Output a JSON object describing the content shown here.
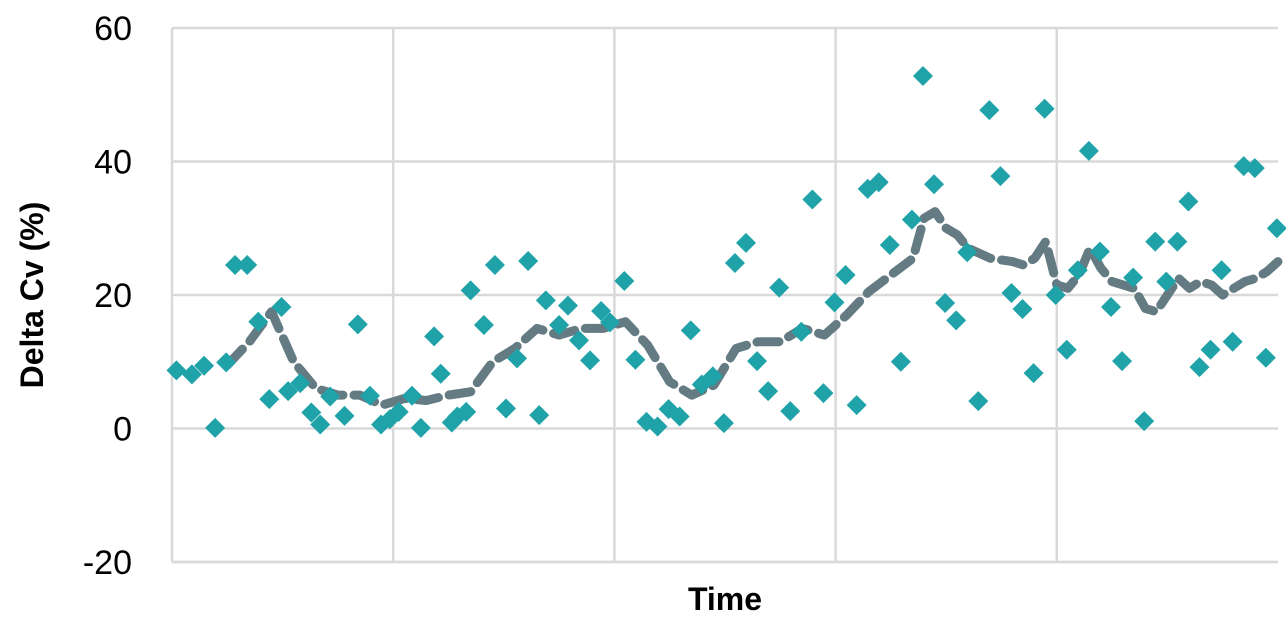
{
  "chart_data": {
    "type": "scatter",
    "title": "",
    "xlabel": "Time",
    "ylabel": "Delta Cv (%)",
    "ylim": [
      -20,
      60
    ],
    "xlim": [
      0,
      100
    ],
    "yticks": [
      -20,
      0,
      20,
      40,
      60
    ],
    "ytick_labels": [
      "-20",
      "0",
      "20",
      "40",
      "60"
    ],
    "x_gridlines": [
      20,
      40,
      60,
      80
    ],
    "grid": true,
    "legend": "none",
    "series": [
      {
        "marker": "diamond",
        "color": "#1fa3a8",
        "points": [
          [
            0.4,
            8.7
          ],
          [
            1.8,
            8.1
          ],
          [
            2.9,
            9.4
          ],
          [
            3.9,
            0.1
          ],
          [
            4.9,
            9.9
          ],
          [
            5.7,
            24.5
          ],
          [
            6.8,
            24.5
          ],
          [
            7.8,
            16.0
          ],
          [
            8.8,
            4.4
          ],
          [
            9.9,
            18.2
          ],
          [
            10.5,
            5.6
          ],
          [
            11.6,
            6.8
          ],
          [
            12.6,
            2.4
          ],
          [
            13.4,
            0.6
          ],
          [
            14.3,
            4.8
          ],
          [
            15.6,
            1.9
          ],
          [
            16.8,
            15.6
          ],
          [
            17.9,
            4.9
          ],
          [
            18.9,
            0.6
          ],
          [
            19.7,
            1.4
          ],
          [
            20.5,
            2.5
          ],
          [
            21.7,
            4.9
          ],
          [
            22.5,
            0.1
          ],
          [
            23.7,
            13.8
          ],
          [
            24.3,
            8.2
          ],
          [
            25.3,
            0.9
          ],
          [
            25.8,
            1.8
          ],
          [
            26.6,
            2.5
          ],
          [
            27.0,
            20.7
          ],
          [
            28.2,
            15.5
          ],
          [
            29.2,
            24.5
          ],
          [
            30.2,
            3.0
          ],
          [
            31.2,
            10.5
          ],
          [
            32.2,
            25.1
          ],
          [
            33.2,
            2.0
          ],
          [
            33.8,
            19.2
          ],
          [
            35.0,
            15.5
          ],
          [
            35.8,
            18.4
          ],
          [
            36.8,
            13.2
          ],
          [
            37.8,
            10.2
          ],
          [
            38.8,
            17.6
          ],
          [
            39.6,
            15.9
          ],
          [
            40.9,
            22.1
          ],
          [
            41.9,
            10.3
          ],
          [
            42.9,
            1.0
          ],
          [
            43.9,
            0.3
          ],
          [
            44.9,
            2.9
          ],
          [
            45.9,
            1.8
          ],
          [
            46.9,
            14.7
          ],
          [
            47.9,
            6.6
          ],
          [
            48.9,
            7.8
          ],
          [
            49.9,
            0.8
          ],
          [
            50.9,
            24.8
          ],
          [
            51.9,
            27.8
          ],
          [
            52.9,
            10.1
          ],
          [
            53.9,
            5.6
          ],
          [
            54.9,
            21.1
          ],
          [
            55.9,
            2.6
          ],
          [
            56.9,
            14.5
          ],
          [
            57.9,
            34.3
          ],
          [
            58.9,
            5.3
          ],
          [
            59.9,
            18.9
          ],
          [
            60.9,
            23.0
          ],
          [
            61.9,
            3.5
          ],
          [
            62.9,
            35.9
          ],
          [
            63.9,
            36.9
          ],
          [
            64.9,
            27.5
          ],
          [
            65.9,
            10.0
          ],
          [
            66.9,
            31.3
          ],
          [
            67.9,
            52.8
          ],
          [
            68.9,
            36.6
          ],
          [
            69.9,
            18.8
          ],
          [
            70.9,
            16.2
          ],
          [
            71.9,
            26.4
          ],
          [
            72.9,
            4.1
          ],
          [
            73.9,
            47.7
          ],
          [
            74.9,
            37.8
          ],
          [
            75.9,
            20.3
          ],
          [
            76.9,
            17.9
          ],
          [
            77.9,
            8.3
          ],
          [
            78.9,
            47.9
          ],
          [
            79.9,
            20.0
          ],
          [
            80.9,
            11.8
          ],
          [
            81.9,
            23.7
          ],
          [
            82.9,
            41.6
          ],
          [
            83.9,
            26.5
          ],
          [
            84.9,
            18.2
          ],
          [
            85.9,
            10.1
          ],
          [
            86.9,
            22.6
          ],
          [
            87.9,
            1.1
          ],
          [
            88.9,
            28.0
          ],
          [
            89.9,
            22.0
          ],
          [
            90.9,
            28.0
          ],
          [
            91.9,
            34.0
          ],
          [
            92.9,
            9.2
          ],
          [
            93.9,
            11.8
          ],
          [
            94.9,
            23.7
          ],
          [
            95.9,
            13.0
          ],
          [
            96.9,
            39.3
          ],
          [
            97.9,
            39.0
          ],
          [
            98.9,
            10.6
          ],
          [
            99.9,
            30.0
          ]
        ]
      },
      {
        "marker": "none",
        "line": "dashed",
        "color": "#647b83",
        "points": [
          [
            5.0,
            9.5
          ],
          [
            7.0,
            13.0
          ],
          [
            9.0,
            17.5
          ],
          [
            11.0,
            10.0
          ],
          [
            13.0,
            6.0
          ],
          [
            15.0,
            5.0
          ],
          [
            17.0,
            5.0
          ],
          [
            19.0,
            3.5
          ],
          [
            21.0,
            4.5
          ],
          [
            23.0,
            4.2
          ],
          [
            25.0,
            5.0
          ],
          [
            27.0,
            5.5
          ],
          [
            29.0,
            10.0
          ],
          [
            31.0,
            12.0
          ],
          [
            33.0,
            15.0
          ],
          [
            35.0,
            14.0
          ],
          [
            37.0,
            15.0
          ],
          [
            39.0,
            15.0
          ],
          [
            41.0,
            16.0
          ],
          [
            43.0,
            12.5
          ],
          [
            45.0,
            7.0
          ],
          [
            47.0,
            5.0
          ],
          [
            49.0,
            6.5
          ],
          [
            51.0,
            12.0
          ],
          [
            53.0,
            13.0
          ],
          [
            55.0,
            13.0
          ],
          [
            57.0,
            15.0
          ],
          [
            59.0,
            14.0
          ],
          [
            61.0,
            17.0
          ],
          [
            63.0,
            20.5
          ],
          [
            65.0,
            23.0
          ],
          [
            67.0,
            25.5
          ],
          [
            68.0,
            31.5
          ],
          [
            69.0,
            32.5
          ],
          [
            70.0,
            30.0
          ],
          [
            71.0,
            29.0
          ],
          [
            72.0,
            27.0
          ],
          [
            74.0,
            25.5
          ],
          [
            76.0,
            25.0
          ],
          [
            77.0,
            24.5
          ],
          [
            78.0,
            25.5
          ],
          [
            79.0,
            28.0
          ],
          [
            80.0,
            21.5
          ],
          [
            81.0,
            21.0
          ],
          [
            82.0,
            23.0
          ],
          [
            83.0,
            27.0
          ],
          [
            84.0,
            24.0
          ],
          [
            85.0,
            22.0
          ],
          [
            87.0,
            21.0
          ],
          [
            88.0,
            18.0
          ],
          [
            89.0,
            17.5
          ],
          [
            91.0,
            22.5
          ],
          [
            92.0,
            21.0
          ],
          [
            93.0,
            22.0
          ],
          [
            94.0,
            21.5
          ],
          [
            95.0,
            20.0
          ],
          [
            96.0,
            21.0
          ],
          [
            97.0,
            22.0
          ],
          [
            98.0,
            22.5
          ],
          [
            99.0,
            23.5
          ],
          [
            100.0,
            25.0
          ]
        ]
      }
    ]
  }
}
